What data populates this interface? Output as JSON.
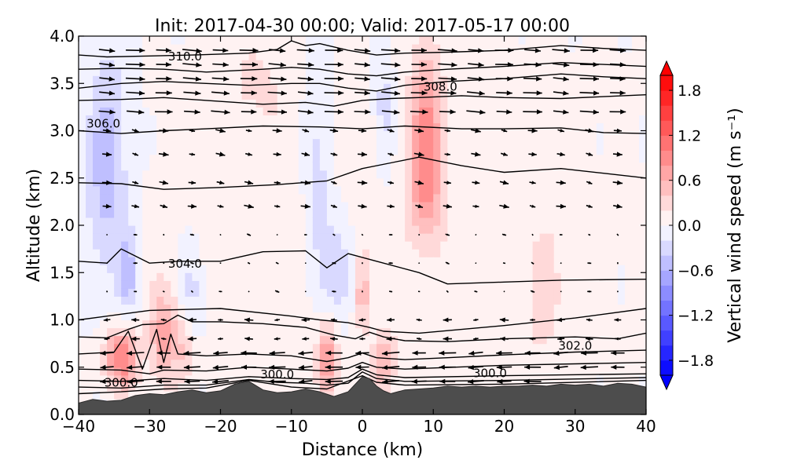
{
  "chart_data": {
    "type": "contour",
    "title": "Init: 2017-04-30 00:00; Valid: 2017-05-17 00:00",
    "xlabel": "Distance (km)",
    "ylabel": "Altitude (km)",
    "xlim": [
      -40,
      40
    ],
    "ylim": [
      0.0,
      4.0
    ],
    "x_ticks": [
      -40,
      -30,
      -20,
      -10,
      0,
      10,
      20,
      30,
      40
    ],
    "x_tick_labels": [
      "−40",
      "−30",
      "−20",
      "−10",
      "0",
      "10",
      "20",
      "30",
      "40"
    ],
    "y_ticks": [
      0.0,
      0.5,
      1.0,
      1.5,
      2.0,
      2.5,
      3.0,
      3.5,
      4.0
    ],
    "y_tick_labels": [
      "0.0",
      "0.5",
      "1.0",
      "1.5",
      "2.0",
      "2.5",
      "3.0",
      "3.5",
      "4.0"
    ],
    "colorbar": {
      "label": "Vertical wind speed (m s⁻¹)",
      "range": [
        -2.0,
        2.0
      ],
      "ticks": [
        1.8,
        1.2,
        0.6,
        0.0,
        -0.6,
        -1.2,
        -1.8
      ],
      "tick_labels": [
        "1.8",
        "1.2",
        "0.6",
        "0.0",
        "−0.6",
        "−1.2",
        "−1.8"
      ],
      "colormap": "bwr",
      "n_levels": 20,
      "extend": "both"
    },
    "terrain": {
      "color": "#4d4d4d",
      "x": [
        -40,
        -38,
        -36,
        -34,
        -32,
        -30,
        -28,
        -26,
        -24,
        -22,
        -20,
        -18,
        -16,
        -14,
        -12,
        -10,
        -8,
        -6,
        -4,
        -2,
        0,
        1,
        2,
        3,
        4,
        6,
        8,
        10,
        12,
        14,
        16,
        18,
        20,
        22,
        24,
        26,
        28,
        30,
        32,
        34,
        36,
        38,
        40
      ],
      "height": [
        0.12,
        0.16,
        0.14,
        0.15,
        0.2,
        0.22,
        0.21,
        0.24,
        0.26,
        0.23,
        0.25,
        0.32,
        0.35,
        0.26,
        0.23,
        0.24,
        0.27,
        0.24,
        0.19,
        0.24,
        0.4,
        0.38,
        0.3,
        0.25,
        0.22,
        0.26,
        0.27,
        0.28,
        0.3,
        0.29,
        0.3,
        0.29,
        0.3,
        0.3,
        0.31,
        0.3,
        0.32,
        0.31,
        0.32,
        0.3,
        0.33,
        0.32,
        0.29
      ]
    },
    "vertical_wind_anomalies": [
      {
        "x": -36,
        "z": 2.6,
        "sx": 2.2,
        "sz": 0.9,
        "w": -0.55
      },
      {
        "x": -33,
        "z": 1.5,
        "sx": 1.0,
        "sz": 0.3,
        "w": -0.45
      },
      {
        "x": -34,
        "z": 0.6,
        "sx": 1.6,
        "sz": 0.22,
        "w": 1.0
      },
      {
        "x": -28,
        "z": 0.85,
        "sx": 1.4,
        "sz": 0.35,
        "w": 0.65
      },
      {
        "x": -25,
        "z": 0.7,
        "sx": 1.0,
        "sz": 0.25,
        "w": 0.35
      },
      {
        "x": -24,
        "z": 1.3,
        "sx": 1.2,
        "sz": 0.4,
        "w": -0.35
      },
      {
        "x": -6,
        "z": 2.5,
        "sx": 1.4,
        "sz": 1.1,
        "w": -0.35
      },
      {
        "x": -5,
        "z": 0.6,
        "sx": 1.0,
        "sz": 0.3,
        "w": 0.8
      },
      {
        "x": -3,
        "z": 1.5,
        "sx": 1.5,
        "sz": 0.4,
        "w": -0.4
      },
      {
        "x": 0,
        "z": 1.3,
        "sx": 0.6,
        "sz": 0.3,
        "w": 0.55
      },
      {
        "x": 3,
        "z": 3.2,
        "sx": 1.0,
        "sz": 0.5,
        "w": -0.35
      },
      {
        "x": 3,
        "z": 0.55,
        "sx": 1.2,
        "sz": 0.25,
        "w": 0.45
      },
      {
        "x": 9,
        "z": 3.0,
        "sx": 1.6,
        "sz": 0.6,
        "w": 0.8
      },
      {
        "x": 9,
        "z": 2.3,
        "sx": 1.8,
        "sz": 0.35,
        "w": 0.35
      },
      {
        "x": -15,
        "z": 3.5,
        "sx": 3.0,
        "sz": 0.35,
        "w": 0.2
      },
      {
        "x": 25,
        "z": 1.2,
        "sx": 3.0,
        "sz": 0.8,
        "w": 0.18
      },
      {
        "x": 0,
        "z": 2.0,
        "sx": 30.0,
        "sz": 1.5,
        "w": 0.1
      }
    ],
    "isentropes": [
      {
        "theta": 299.0,
        "x": [
          -40,
          -34,
          -28,
          -22,
          -16,
          -10,
          -5,
          0,
          2,
          6,
          20,
          40
        ],
        "z": [
          0.22,
          0.24,
          0.27,
          0.28,
          0.36,
          0.29,
          0.27,
          0.41,
          0.34,
          0.31,
          0.32,
          0.36
        ]
      },
      {
        "theta": 300.0,
        "x": [
          -40,
          -34,
          -28,
          -22,
          -16,
          -12,
          -8,
          -5,
          -2,
          0,
          2,
          6,
          20,
          40
        ],
        "z": [
          0.29,
          0.28,
          0.31,
          0.31,
          0.37,
          0.34,
          0.33,
          0.31,
          0.33,
          0.45,
          0.38,
          0.35,
          0.36,
          0.39
        ]
      },
      {
        "theta": 300.5,
        "x": [
          -40,
          -34,
          -28,
          -22,
          -16,
          -10,
          -5,
          -2,
          0,
          2,
          6,
          20,
          40
        ],
        "z": [
          0.36,
          0.35,
          0.38,
          0.36,
          0.4,
          0.38,
          0.37,
          0.39,
          0.48,
          0.42,
          0.39,
          0.41,
          0.43
        ]
      },
      {
        "theta": 301.0,
        "x": [
          -40,
          -34,
          -30,
          -28,
          -22,
          -16,
          -10,
          -5,
          -2,
          0,
          2,
          6,
          20,
          40
        ],
        "z": [
          0.48,
          0.47,
          0.43,
          0.47,
          0.46,
          0.5,
          0.48,
          0.46,
          0.49,
          0.55,
          0.5,
          0.48,
          0.52,
          0.55
        ]
      },
      {
        "theta": 301.5,
        "x": [
          -40,
          -35,
          -33,
          -31,
          -29,
          -28,
          -27,
          -26,
          -22,
          -16,
          -10,
          -5,
          -2,
          0,
          2,
          6,
          12,
          20,
          30,
          40
        ],
        "z": [
          0.64,
          0.66,
          0.88,
          0.48,
          0.9,
          0.55,
          0.85,
          0.64,
          0.62,
          0.64,
          0.62,
          0.56,
          0.6,
          0.65,
          0.6,
          0.58,
          0.6,
          0.63,
          0.66,
          0.68
        ]
      },
      {
        "theta": 302.0,
        "x": [
          -40,
          -36,
          -33,
          -31,
          -28,
          -26,
          -24,
          -20,
          -14,
          -8,
          -4,
          -1,
          1,
          3,
          6,
          12,
          20,
          30,
          36,
          40
        ],
        "z": [
          0.82,
          0.81,
          0.9,
          0.95,
          0.96,
          1.05,
          0.98,
          0.98,
          0.96,
          0.92,
          0.84,
          0.8,
          0.87,
          0.82,
          0.78,
          0.77,
          0.8,
          0.82,
          0.8,
          0.86
        ]
      },
      {
        "theta": 303.0,
        "x": [
          -40,
          -36,
          -30,
          -20,
          -10,
          -6,
          -2,
          1,
          3,
          8,
          14,
          20,
          30,
          40
        ],
        "z": [
          1.0,
          1.04,
          1.1,
          1.12,
          1.04,
          1.0,
          0.97,
          0.92,
          0.88,
          0.86,
          0.9,
          0.94,
          1.02,
          1.12
        ]
      },
      {
        "theta": 304.0,
        "x": [
          -40,
          -36,
          -34,
          -30,
          -26,
          -20,
          -14,
          -8,
          -5,
          -2,
          2,
          8,
          12,
          20,
          28,
          40
        ],
        "z": [
          1.62,
          1.6,
          1.75,
          1.6,
          1.62,
          1.62,
          1.72,
          1.73,
          1.55,
          1.7,
          1.62,
          1.5,
          1.38,
          1.4,
          1.42,
          1.43
        ]
      },
      {
        "theta": 305.0,
        "x": [
          -40,
          -34,
          -28,
          -20,
          -12,
          -5,
          0,
          4,
          8,
          14,
          20,
          28,
          34,
          40
        ],
        "z": [
          2.45,
          2.44,
          2.38,
          2.4,
          2.43,
          2.47,
          2.6,
          2.66,
          2.72,
          2.63,
          2.56,
          2.6,
          2.55,
          2.5
        ]
      },
      {
        "theta": 306.0,
        "x": [
          -40,
          -34,
          -28,
          -22,
          -14,
          -6,
          0,
          6,
          14,
          20,
          28,
          34,
          40
        ],
        "z": [
          3.0,
          2.97,
          3.0,
          3.02,
          3.05,
          3.04,
          3.02,
          3.05,
          3.02,
          3.02,
          3.03,
          2.98,
          2.97
        ]
      },
      {
        "theta": 307.0,
        "x": [
          -40,
          -34,
          -28,
          -22,
          -14,
          -8,
          -4,
          0,
          4,
          8,
          14,
          20,
          28,
          34,
          40
        ],
        "z": [
          3.32,
          3.33,
          3.35,
          3.32,
          3.28,
          3.3,
          3.26,
          3.32,
          3.34,
          3.35,
          3.37,
          3.35,
          3.34,
          3.36,
          3.38
        ]
      },
      {
        "theta": 308.0,
        "x": [
          -40,
          -34,
          -28,
          -22,
          -16,
          -10,
          -6,
          -2,
          2,
          6,
          12,
          20,
          28,
          34,
          40
        ],
        "z": [
          3.45,
          3.5,
          3.52,
          3.5,
          3.48,
          3.5,
          3.5,
          3.45,
          3.42,
          3.48,
          3.52,
          3.55,
          3.6,
          3.57,
          3.55
        ]
      },
      {
        "theta": 309.0,
        "x": [
          -40,
          -34,
          -28,
          -22,
          -14,
          -10,
          -6,
          -2,
          2,
          6,
          12,
          20,
          28,
          34,
          40
        ],
        "z": [
          3.65,
          3.66,
          3.65,
          3.62,
          3.65,
          3.67,
          3.65,
          3.6,
          3.58,
          3.62,
          3.65,
          3.68,
          3.72,
          3.7,
          3.68
        ]
      },
      {
        "theta": 310.0,
        "x": [
          -40,
          -36,
          -30,
          -24,
          -16,
          -12,
          -10,
          -8,
          -6,
          -2,
          2,
          6,
          12,
          20,
          28,
          34,
          40
        ],
        "z": [
          3.8,
          3.78,
          3.79,
          3.8,
          3.82,
          3.86,
          3.95,
          3.9,
          3.92,
          3.85,
          3.8,
          3.82,
          3.83,
          3.85,
          3.9,
          3.87,
          3.85
        ]
      }
    ],
    "contour_labels": [
      {
        "text": "310.0",
        "x": -25.0,
        "z": 3.78
      },
      {
        "text": "308.0",
        "x": 11.0,
        "z": 3.46
      },
      {
        "text": "306.0",
        "x": -36.5,
        "z": 3.07
      },
      {
        "text": "304.0",
        "x": -25.0,
        "z": 1.59
      },
      {
        "text": "302.0",
        "x": 30.0,
        "z": 0.72
      },
      {
        "text": "300.0",
        "x": -34.0,
        "z": 0.33
      },
      {
        "text": "300.0",
        "x": -12.0,
        "z": 0.42
      },
      {
        "text": "300.0",
        "x": 18.0,
        "z": 0.43
      }
    ],
    "wind_arrows": {
      "x_spacing_km": 4,
      "z_levels_km": [
        0.35,
        0.5,
        0.65,
        0.8,
        1.0,
        1.3,
        1.6,
        1.9,
        2.2,
        2.45,
        2.75,
        3.0,
        3.2,
        3.4,
        3.55,
        3.7,
        3.85
      ]
    }
  }
}
